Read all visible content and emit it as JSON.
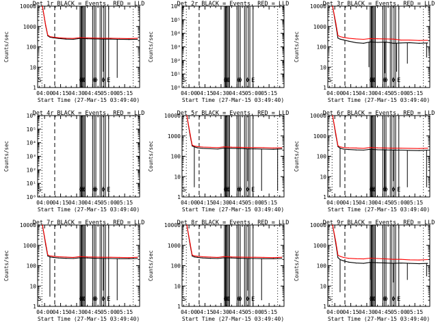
{
  "colors": {
    "events": "#000000",
    "lld": "#ff0000",
    "background": "#ffffff"
  },
  "xtick_labels": [
    "04:00",
    "04:15",
    "04:30",
    "04:45",
    "05:00",
    "05:15"
  ],
  "xtick_minutes": [
    0,
    15,
    30,
    45,
    60,
    75
  ],
  "chart_data": [
    {
      "type": "line",
      "title": "Det 1r BLACK = Events, RED = LLD",
      "xlabel": "Start Time (27-Mar-15 03:49:40)",
      "ylabel": "Counts/sec",
      "scale": "log",
      "ylim": [
        1,
        10000
      ],
      "ytick_labels": [
        "1",
        "10",
        "100",
        "1000",
        "10000"
      ],
      "series": [
        {
          "name": "Events",
          "color": "#000000",
          "x": [
            -2,
            1,
            3,
            5,
            8,
            13,
            20,
            27,
            33,
            40,
            48,
            55,
            62,
            70,
            79,
            87
          ],
          "y": [
            10000,
            1100,
            350,
            300,
            280,
            260,
            240,
            235,
            260,
            250,
            245,
            240,
            240,
            235,
            230,
            235
          ]
        },
        {
          "name": "LLD",
          "color": "#ff0000",
          "x": [
            -2,
            1,
            3,
            5,
            8,
            13,
            20,
            27,
            33,
            40,
            48,
            55,
            62,
            70,
            79,
            87
          ],
          "y": [
            10000,
            1200,
            380,
            320,
            300,
            280,
            265,
            260,
            285,
            275,
            270,
            265,
            265,
            260,
            255,
            265
          ]
        }
      ],
      "dropouts": [
        [
          34,
          1
        ],
        [
          37,
          2
        ],
        [
          55,
          6
        ],
        [
          57,
          1
        ],
        [
          68,
          3
        ]
      ],
      "annotations": [
        "S",
        "Φ",
        "Φ",
        "Φ",
        "Φ",
        "Φ",
        "Φ",
        "E"
      ]
    },
    {
      "type": "line",
      "title": "Det 2r BLACK = Events, RED = LLD",
      "xlabel": "Start Time (27-Mar-15 03:49:40)",
      "ylabel": "Counts/sec",
      "scale": "log",
      "ylim": [
        1,
        1000000
      ],
      "ytick_labels": [
        "10⁰",
        "10¹",
        "10²",
        "10³",
        "10⁴",
        "10⁵",
        "10⁶"
      ],
      "series": [],
      "dropouts": [],
      "annotations": [
        "S",
        "Φ",
        "Φ",
        "Φ",
        "Φ",
        "Φ",
        "Φ",
        "E"
      ]
    },
    {
      "type": "line",
      "title": "Det 3r BLACK = Events, RED = LLD",
      "xlabel": "Start Time (27-Mar-15 03:49:40)",
      "ylabel": "Counts/sec",
      "scale": "log",
      "ylim": [
        1,
        10000
      ],
      "ytick_labels": [
        "1",
        "10",
        "100",
        "1000",
        "10000"
      ],
      "series": [
        {
          "name": "Events",
          "color": "#000000",
          "x": [
            -2,
            1,
            3,
            5,
            8,
            13,
            20,
            27,
            33,
            40,
            48,
            55,
            62,
            70,
            79,
            87
          ],
          "y": [
            10000,
            1200,
            270,
            240,
            220,
            190,
            160,
            150,
            175,
            165,
            170,
            150,
            155,
            160,
            150,
            155
          ]
        },
        {
          "name": "LLD",
          "color": "#ff0000",
          "x": [
            -2,
            1,
            3,
            5,
            8,
            13,
            20,
            27,
            33,
            40,
            48,
            55,
            62,
            70,
            79,
            87
          ],
          "y": [
            10000,
            1500,
            360,
            320,
            290,
            265,
            245,
            235,
            255,
            250,
            245,
            240,
            215,
            215,
            205,
            210
          ]
        }
      ],
      "dropouts": [
        [
          32,
          10
        ],
        [
          47,
          5
        ],
        [
          58,
          6
        ],
        [
          68,
          15
        ],
        [
          86,
          30
        ]
      ],
      "annotations": [
        "S",
        "Φ",
        "Φ",
        "Φ",
        "Φ",
        "Φ",
        "Φ",
        "E"
      ]
    },
    {
      "type": "line",
      "title": "Det 4r BLACK = Events, RED = LLD",
      "xlabel": "Start Time (27-Mar-15 03:49:40)",
      "ylabel": "Counts/sec",
      "scale": "log",
      "ylim": [
        1,
        1000000
      ],
      "ytick_labels": [
        "10⁰",
        "10¹",
        "10²",
        "10³",
        "10⁴",
        "10⁵",
        "10⁶"
      ],
      "series": [],
      "dropouts": [],
      "annotations": [
        "S",
        "Φ",
        "Φ",
        "Φ",
        "Φ",
        "Φ",
        "Φ",
        "E"
      ]
    },
    {
      "type": "line",
      "title": "Det 5r BLACK = Events, RED = LLD",
      "xlabel": "Start Time (27-Mar-15 03:49:40)",
      "ylabel": "Counts/sec",
      "scale": "log",
      "ylim": [
        1,
        10000
      ],
      "ytick_labels": [
        "1",
        "10",
        "100",
        "1000",
        "10000"
      ],
      "series": [
        {
          "name": "Events",
          "color": "#000000",
          "x": [
            -2,
            1,
            3,
            5,
            8,
            13,
            20,
            27,
            33,
            40,
            48,
            55,
            62,
            70,
            79,
            87
          ],
          "y": [
            10000,
            1100,
            320,
            290,
            260,
            245,
            235,
            225,
            255,
            245,
            240,
            230,
            230,
            225,
            220,
            230
          ]
        },
        {
          "name": "LLD",
          "color": "#ff0000",
          "x": [
            -2,
            1,
            3,
            5,
            8,
            13,
            20,
            27,
            33,
            40,
            48,
            55,
            62,
            70,
            79,
            87
          ],
          "y": [
            10000,
            1300,
            360,
            320,
            300,
            285,
            275,
            265,
            290,
            280,
            275,
            270,
            270,
            265,
            255,
            265
          ]
        }
      ],
      "dropouts": [
        [
          5,
          3
        ],
        [
          34,
          2
        ],
        [
          55,
          6
        ],
        [
          68,
          2
        ],
        [
          83,
          2
        ]
      ],
      "annotations": [
        "S",
        "Φ",
        "Φ",
        "Φ",
        "Φ",
        "Φ",
        "Φ",
        "E"
      ]
    },
    {
      "type": "line",
      "title": "Det 6r BLACK = Events, RED = LLD",
      "xlabel": "Start Time (27-Mar-15 03:49:40)",
      "ylabel": "Counts/sec",
      "scale": "log",
      "ylim": [
        1,
        10000
      ],
      "ytick_labels": [
        "1",
        "10",
        "100",
        "1000",
        "10000"
      ],
      "series": [
        {
          "name": "Events",
          "color": "#000000",
          "x": [
            -2,
            1,
            3,
            5,
            8,
            13,
            20,
            27,
            33,
            40,
            48,
            55,
            62,
            70,
            79,
            87
          ],
          "y": [
            10000,
            1100,
            300,
            250,
            225,
            215,
            205,
            200,
            220,
            210,
            205,
            200,
            200,
            195,
            190,
            200
          ]
        },
        {
          "name": "LLD",
          "color": "#ff0000",
          "x": [
            -2,
            1,
            3,
            5,
            8,
            13,
            20,
            27,
            33,
            40,
            48,
            55,
            62,
            70,
            79,
            87
          ],
          "y": [
            10000,
            1300,
            330,
            290,
            270,
            260,
            255,
            245,
            270,
            260,
            255,
            250,
            250,
            245,
            240,
            250
          ]
        }
      ],
      "dropouts": [
        [
          5,
          3
        ],
        [
          34,
          1
        ],
        [
          47,
          2
        ],
        [
          55,
          6
        ],
        [
          68,
          3
        ],
        [
          86,
          3
        ]
      ],
      "annotations": [
        "S",
        "Φ",
        "Φ",
        "Φ",
        "Φ",
        "Φ",
        "Φ",
        "E"
      ]
    },
    {
      "type": "line",
      "title": "Det 7r BLACK = Events, RED = LLD",
      "xlabel": "Start Time (27-Mar-15 03:49:40)",
      "ylabel": "Counts/sec",
      "scale": "log",
      "ylim": [
        1,
        10000
      ],
      "ytick_labels": [
        "1",
        "10",
        "100",
        "1000",
        "10000"
      ],
      "series": [
        {
          "name": "Events",
          "color": "#000000",
          "x": [
            -2,
            1,
            3,
            5,
            8,
            13,
            20,
            27,
            33,
            40,
            48,
            55,
            62,
            70,
            79,
            87
          ],
          "y": [
            10000,
            1100,
            300,
            270,
            255,
            240,
            230,
            225,
            245,
            240,
            230,
            225,
            225,
            220,
            220,
            225
          ]
        },
        {
          "name": "LLD",
          "color": "#ff0000",
          "x": [
            -2,
            1,
            3,
            5,
            8,
            13,
            20,
            27,
            33,
            40,
            48,
            55,
            62,
            70,
            79,
            87
          ],
          "y": [
            10000,
            1300,
            340,
            305,
            290,
            275,
            265,
            255,
            280,
            270,
            265,
            260,
            260,
            255,
            250,
            260
          ]
        }
      ],
      "dropouts": [
        [
          5,
          3
        ],
        [
          34,
          2
        ],
        [
          55,
          6
        ],
        [
          68,
          2
        ]
      ],
      "annotations": [
        "S",
        "Φ",
        "Φ",
        "Φ",
        "Φ",
        "Φ",
        "Φ",
        "E"
      ]
    },
    {
      "type": "line",
      "title": "Det 8r BLACK = Events, RED = LLD",
      "xlabel": "Start Time (27-Mar-15 03:49:40)",
      "ylabel": "Counts/sec",
      "scale": "log",
      "ylim": [
        1,
        10000
      ],
      "ytick_labels": [
        "1",
        "10",
        "100",
        "1000",
        "10000"
      ],
      "series": [
        {
          "name": "Events",
          "color": "#000000",
          "x": [
            -2,
            1,
            3,
            5,
            8,
            13,
            20,
            27,
            33,
            40,
            48,
            55,
            62,
            70,
            79,
            87
          ],
          "y": [
            10000,
            1100,
            300,
            270,
            255,
            240,
            230,
            225,
            245,
            240,
            230,
            225,
            225,
            220,
            220,
            225
          ]
        },
        {
          "name": "LLD",
          "color": "#ff0000",
          "x": [
            -2,
            1,
            3,
            5,
            8,
            13,
            20,
            27,
            33,
            40,
            48,
            55,
            62,
            70,
            79,
            87
          ],
          "y": [
            10000,
            1300,
            340,
            305,
            290,
            275,
            265,
            255,
            280,
            270,
            265,
            260,
            260,
            255,
            250,
            260
          ]
        }
      ],
      "dropouts": [
        [
          34,
          2
        ],
        [
          55,
          6
        ],
        [
          68,
          2
        ]
      ],
      "annotations": [
        "S",
        "Φ",
        "Φ",
        "Φ",
        "Φ",
        "Φ",
        "Φ",
        "E"
      ]
    },
    {
      "type": "line",
      "title": "Det 9r BLACK = Events, RED = LLD",
      "xlabel": "Start Time (27-Mar-15 03:49:40)",
      "ylabel": "Counts/sec",
      "scale": "log",
      "ylim": [
        1,
        10000
      ],
      "ytick_labels": [
        "1",
        "10",
        "100",
        "1000",
        "10000"
      ],
      "series": [
        {
          "name": "Events",
          "color": "#000000",
          "x": [
            -2,
            1,
            3,
            5,
            8,
            13,
            20,
            27,
            33,
            40,
            48,
            55,
            62,
            70,
            79,
            87
          ],
          "y": [
            10000,
            1200,
            250,
            200,
            175,
            150,
            135,
            130,
            145,
            140,
            135,
            130,
            135,
            130,
            125,
            130
          ]
        },
        {
          "name": "LLD",
          "color": "#ff0000",
          "x": [
            -2,
            1,
            3,
            5,
            8,
            13,
            20,
            27,
            33,
            40,
            48,
            55,
            62,
            70,
            79,
            87
          ],
          "y": [
            10000,
            1500,
            330,
            290,
            255,
            230,
            220,
            215,
            235,
            225,
            215,
            205,
            205,
            195,
            190,
            200
          ]
        }
      ],
      "dropouts": [
        [
          5,
          5
        ],
        [
          34,
          20
        ],
        [
          55,
          15
        ],
        [
          68,
          20
        ],
        [
          86,
          30
        ]
      ],
      "annotations": [
        "S",
        "Φ",
        "Φ",
        "Φ",
        "Φ",
        "Φ",
        "Φ",
        "E"
      ]
    }
  ]
}
